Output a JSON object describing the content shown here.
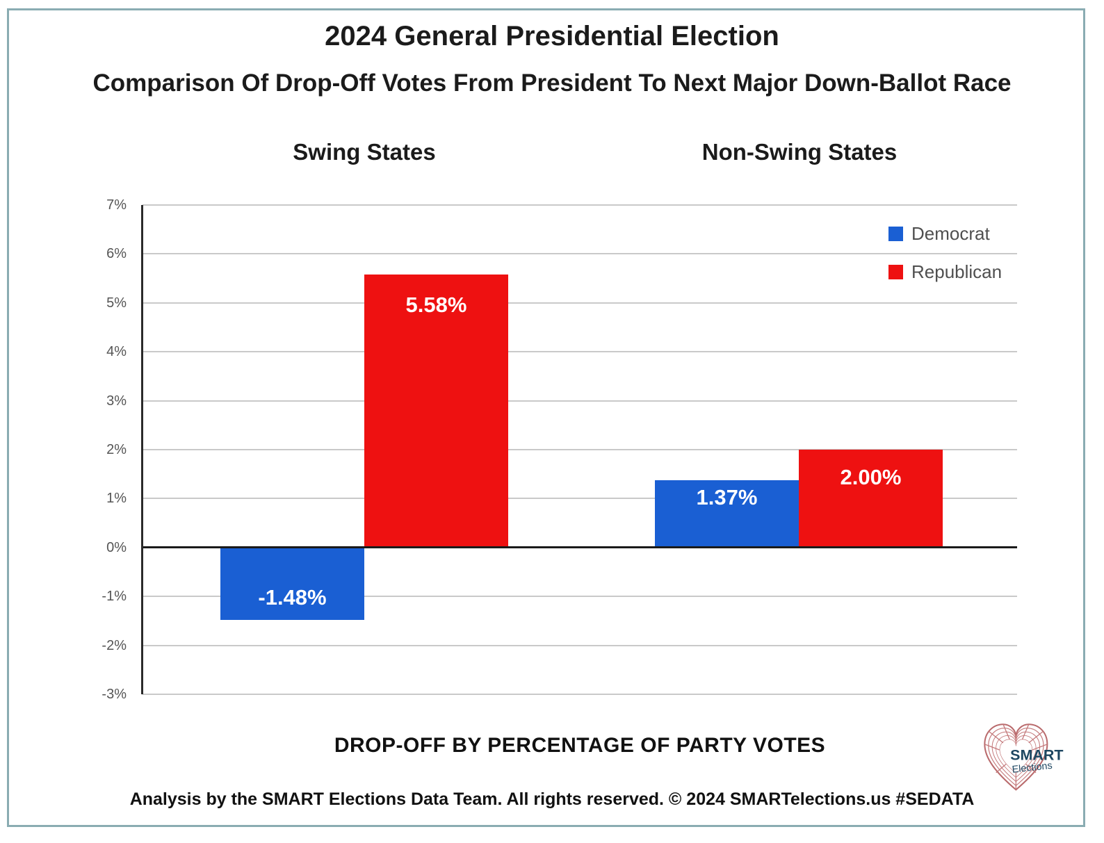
{
  "title": "2024 General Presidential Election",
  "subtitle": "Comparison Of Drop-Off Votes From President To Next Major Down-Ballot Race",
  "group_labels": [
    "Swing States",
    "Non-Swing States"
  ],
  "legend": [
    {
      "label": "Democrat",
      "color": "#1a5fd3"
    },
    {
      "label": "Republican",
      "color": "#ee1111"
    }
  ],
  "chart_data": {
    "type": "bar",
    "categories": [
      "Swing States",
      "Non-Swing States"
    ],
    "series": [
      {
        "name": "Democrat",
        "color": "#1a5fd3",
        "values": [
          -1.48,
          1.37
        ],
        "labels": [
          "-1.48%",
          "1.37%"
        ]
      },
      {
        "name": "Republican",
        "color": "#ee1111",
        "values": [
          5.58,
          2.0
        ],
        "labels": [
          "5.58%",
          "2.00%"
        ]
      }
    ],
    "ylim": [
      -3,
      7
    ],
    "ytick_values": [
      7,
      6,
      5,
      4,
      3,
      2,
      1,
      0,
      -1,
      -2,
      -3
    ],
    "ytick_labels": [
      "7%",
      "6%",
      "5%",
      "4%",
      "3%",
      "2%",
      "1%",
      "0%",
      "-1%",
      "-2%",
      "-3%"
    ],
    "grid": true,
    "legend_position": "top-right",
    "caption": "DROP-OFF BY PERCENTAGE OF PARTY VOTES"
  },
  "footer": "Analysis by the SMART Elections Data Team. All rights reserved. © 2024 SMARTelections.us  #SEDATA",
  "logo": {
    "line1": "SMART",
    "line2": "Elections"
  },
  "colors": {
    "frame_border": "#8aacb2",
    "gridline": "#c9c9c9",
    "zero_line": "#1a1a1a",
    "axis": "#2a2a2a",
    "tick_text": "#555555",
    "legend_text": "#4f4f4f",
    "logo_mesh": "#c4797b",
    "logo_text": "#1d4661"
  }
}
